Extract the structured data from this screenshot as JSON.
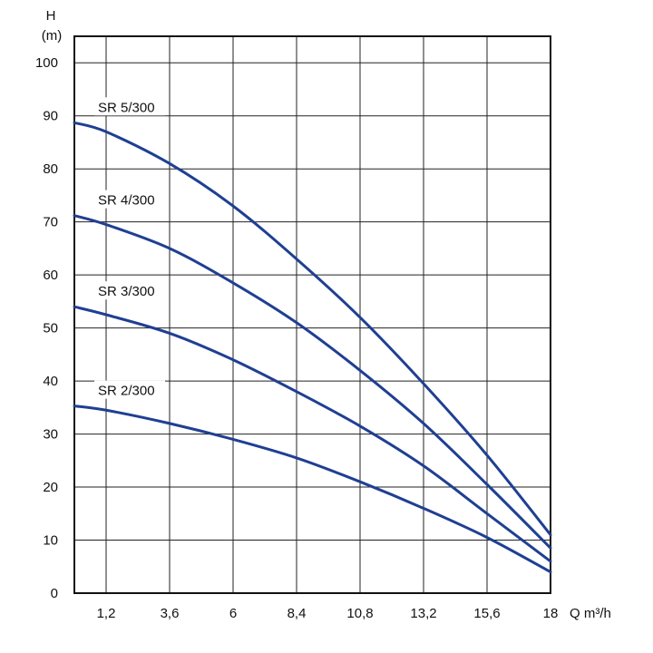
{
  "chart_data": {
    "type": "line",
    "ylabel": "H",
    "yunit": "(m)",
    "xlabel": "Q m³/h",
    "xlim": [
      0,
      18
    ],
    "ylim": [
      0,
      105
    ],
    "x_ticks": [
      1.2,
      3.6,
      6,
      8.4,
      10.8,
      13.2,
      15.6,
      18
    ],
    "x_tick_labels": [
      "1,2",
      "3,6",
      "6",
      "8,4",
      "10,8",
      "13,2",
      "15,6",
      "18"
    ],
    "y_ticks": [
      0,
      10,
      20,
      30,
      40,
      50,
      60,
      70,
      80,
      90,
      100
    ],
    "y_tick_labels": [
      "0",
      "10",
      "20",
      "30",
      "40",
      "50",
      "60",
      "70",
      "80",
      "90",
      "100"
    ],
    "grid": true,
    "line_color": "#1f3f93",
    "series": [
      {
        "name": "SR 5/300",
        "points": [
          [
            0,
            88.7
          ],
          [
            1.2,
            87
          ],
          [
            3.6,
            81
          ],
          [
            6,
            73
          ],
          [
            8.4,
            63
          ],
          [
            10.8,
            52
          ],
          [
            13.2,
            39.5
          ],
          [
            15.6,
            26
          ],
          [
            18,
            11
          ]
        ]
      },
      {
        "name": "SR 4/300",
        "points": [
          [
            0,
            71.2
          ],
          [
            1.2,
            69.5
          ],
          [
            3.6,
            65
          ],
          [
            6,
            58.5
          ],
          [
            8.4,
            51
          ],
          [
            10.8,
            42
          ],
          [
            13.2,
            32
          ],
          [
            15.6,
            20.5
          ],
          [
            18,
            8.5
          ]
        ]
      },
      {
        "name": "SR 3/300",
        "points": [
          [
            0,
            54
          ],
          [
            1.2,
            52.5
          ],
          [
            3.6,
            49
          ],
          [
            6,
            44
          ],
          [
            8.4,
            38
          ],
          [
            10.8,
            31.5
          ],
          [
            13.2,
            24
          ],
          [
            15.6,
            15
          ],
          [
            18,
            6
          ]
        ]
      },
      {
        "name": "SR 2/300",
        "points": [
          [
            0,
            35.3
          ],
          [
            1.2,
            34.5
          ],
          [
            3.6,
            32
          ],
          [
            6,
            29
          ],
          [
            8.4,
            25.5
          ],
          [
            10.8,
            21
          ],
          [
            13.2,
            16
          ],
          [
            15.6,
            10.5
          ],
          [
            18,
            4
          ]
        ]
      }
    ]
  }
}
